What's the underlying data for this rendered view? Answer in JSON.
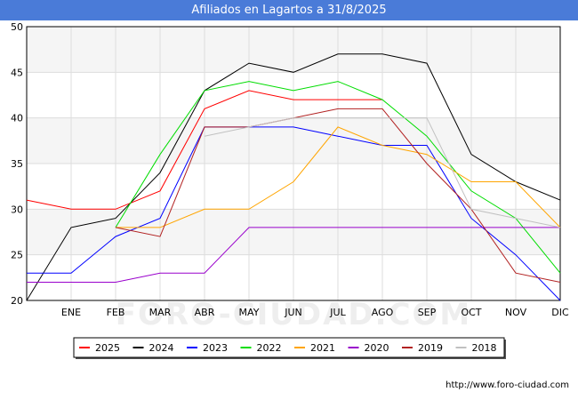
{
  "page": {
    "title": "Afiliados en Lagartos a 31/8/2025",
    "footer_url": "http://www.foro-ciudad.com",
    "watermark": "FORO-CIUDAD.COM"
  },
  "colors": {
    "title_bg": "#4a7bd8",
    "band": "#f5f5f5",
    "grid": "#dddddd"
  },
  "chart_data": {
    "type": "line",
    "title": "Afiliados en Lagartos a 31/8/2025",
    "categories": [
      "",
      "ENE",
      "FEB",
      "MAR",
      "ABR",
      "MAY",
      "JUN",
      "JUL",
      "AGO",
      "SEP",
      "OCT",
      "NOV",
      "DIC"
    ],
    "ylim": [
      20,
      50
    ],
    "yticks": [
      20,
      25,
      30,
      35,
      40,
      45,
      50
    ],
    "grid": true,
    "legend_position": "bottom",
    "series": [
      {
        "name": "2025",
        "color": "#ff0000",
        "values": [
          31,
          30,
          30,
          32,
          41,
          43,
          42,
          42,
          42,
          null,
          null,
          null,
          null
        ]
      },
      {
        "name": "2024",
        "color": "#000000",
        "values": [
          20,
          28,
          29,
          34,
          43,
          46,
          45,
          47,
          47,
          46,
          36,
          33,
          31
        ]
      },
      {
        "name": "2023",
        "color": "#0000ff",
        "values": [
          23,
          23,
          27,
          29,
          39,
          39,
          39,
          38,
          37,
          37,
          29,
          25,
          20
        ]
      },
      {
        "name": "2022",
        "color": "#00dd00",
        "values": [
          null,
          null,
          28,
          36,
          43,
          44,
          43,
          44,
          42,
          38,
          32,
          29,
          23
        ]
      },
      {
        "name": "2021",
        "color": "#ffa500",
        "values": [
          null,
          null,
          28,
          28,
          30,
          30,
          33,
          39,
          37,
          36,
          33,
          33,
          28
        ]
      },
      {
        "name": "2020",
        "color": "#9900cc",
        "values": [
          22,
          22,
          22,
          23,
          23,
          28,
          28,
          28,
          28,
          28,
          28,
          28,
          28
        ]
      },
      {
        "name": "2019",
        "color": "#b22222",
        "values": [
          null,
          null,
          28,
          27,
          39,
          39,
          40,
          41,
          41,
          35,
          30,
          23,
          22
        ]
      },
      {
        "name": "2018",
        "color": "#c0c0c0",
        "values": [
          null,
          null,
          null,
          null,
          38,
          39,
          40,
          40,
          40,
          40,
          30,
          29,
          28
        ]
      }
    ]
  }
}
